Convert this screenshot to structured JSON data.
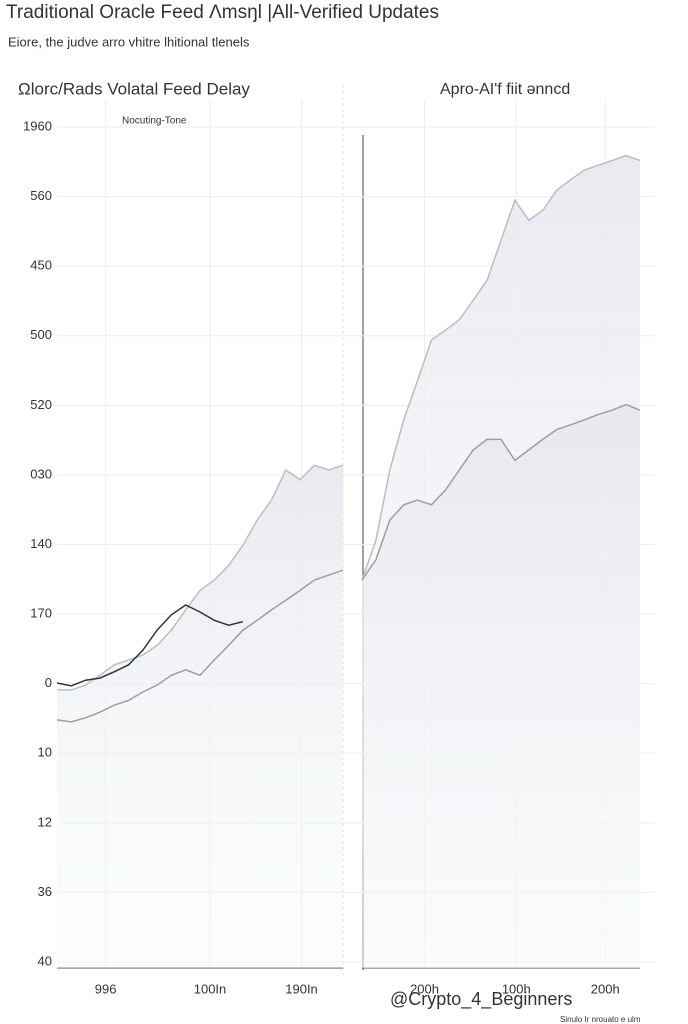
{
  "title": "Traditional Oracle Feed Λmsŋl |All-Verified Updates",
  "subtitle": "Eiore, the judve arro vhitre lhitional tlenels",
  "watermark": "@Crypto_4_Beginners",
  "footnote": "Sinulo Ir nrouato e ulm",
  "chart_data": [
    {
      "type": "line",
      "title": "Ωlorc/Rads Volatal Feed Delay",
      "annotation": "Nocuting-Tone",
      "x": [
        0,
        1,
        2,
        3,
        4,
        5,
        6,
        7,
        8,
        9,
        10,
        11,
        12,
        13,
        14,
        15,
        16,
        17,
        18,
        19,
        20
      ],
      "xlim": [
        0,
        20
      ],
      "xticks": [
        {
          "value": 3.4,
          "label": "996"
        },
        {
          "value": 10.7,
          "label": "100In"
        },
        {
          "value": 17.1,
          "label": "190In"
        }
      ],
      "ylim": [
        0,
        12
      ],
      "yticks": [
        {
          "value": 0,
          "label": "40"
        },
        {
          "value": 1,
          "label": "36"
        },
        {
          "value": 2,
          "label": "12"
        },
        {
          "value": 3,
          "label": "10"
        },
        {
          "value": 4,
          "label": "0"
        },
        {
          "value": 5,
          "label": "170"
        },
        {
          "value": 6,
          "label": "140"
        },
        {
          "value": 7,
          "label": "030"
        },
        {
          "value": 8,
          "label": "520"
        },
        {
          "value": 9,
          "label": "500"
        },
        {
          "value": 10,
          "label": "450"
        },
        {
          "value": 11,
          "label": "560"
        },
        {
          "value": 12,
          "label": "1960"
        }
      ],
      "grid": true,
      "series": [
        {
          "color": "#bdbdbd",
          "area": true,
          "values": [
            3.91,
            3.91,
            3.98,
            4.12,
            4.27,
            4.34,
            4.41,
            4.55,
            4.77,
            5.06,
            5.34,
            5.49,
            5.7,
            5.99,
            6.35,
            6.64,
            7.07,
            6.93,
            7.14,
            7.07,
            7.14
          ]
        },
        {
          "color": "#9e9e9e",
          "values": [
            3.48,
            3.45,
            3.51,
            3.59,
            3.69,
            3.76,
            3.88,
            3.98,
            4.12,
            4.2,
            4.12,
            4.34,
            4.55,
            4.77,
            4.91,
            5.06,
            5.2,
            5.34,
            5.49,
            5.56,
            5.63
          ]
        },
        {
          "color": "#333333",
          "values": [
            4.01,
            3.97,
            4.05,
            4.08,
            4.17,
            4.27,
            4.48,
            4.77,
            4.99,
            5.13,
            5.03,
            4.91,
            4.84,
            4.89,
            null,
            null,
            null,
            null,
            null,
            null,
            null
          ]
        }
      ]
    },
    {
      "type": "line",
      "title": "Apro-AI'f fiit ənncd",
      "x": [
        0,
        1,
        2,
        3,
        4,
        5,
        6,
        7,
        8,
        9,
        10,
        11,
        12,
        13,
        14,
        15,
        16,
        17,
        18,
        19,
        20
      ],
      "xlim": [
        0,
        20
      ],
      "xticks": [
        {
          "value": 4.5,
          "label": "200h"
        },
        {
          "value": 11.1,
          "label": "100h"
        },
        {
          "value": 17.5,
          "label": "200h"
        }
      ],
      "ylim": [
        0,
        12
      ],
      "grid": true,
      "series": [
        {
          "color": "#bdbdbd",
          "area": true,
          "values": [
            5.49,
            6.06,
            7.07,
            7.79,
            8.36,
            8.94,
            9.08,
            9.23,
            9.51,
            9.8,
            10.37,
            10.95,
            10.66,
            10.8,
            11.09,
            11.24,
            11.38,
            11.45,
            11.52,
            11.59,
            11.52
          ]
        },
        {
          "color": "#9e9e9e",
          "area": true,
          "values": [
            5.49,
            5.78,
            6.35,
            6.57,
            6.64,
            6.57,
            6.78,
            7.07,
            7.36,
            7.51,
            7.51,
            7.21,
            7.36,
            7.51,
            7.65,
            7.72,
            7.79,
            7.87,
            7.93,
            8.01,
            7.93
          ]
        }
      ]
    }
  ]
}
